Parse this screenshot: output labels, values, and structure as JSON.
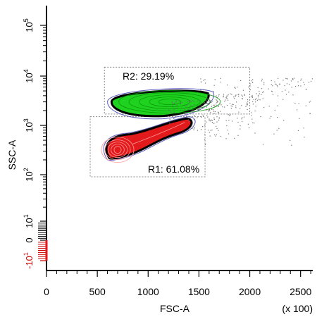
{
  "chart_data": {
    "type": "scatter",
    "subtype": "flow-cytometry contour density plot",
    "xlabel": "FSC-A",
    "ylabel": "SSC-A",
    "x_multiplier_label": "(x 100)",
    "x_ticks": [
      "0",
      "500",
      "1000",
      "1500",
      "2000",
      "2500"
    ],
    "x_tick_values": [
      0,
      500,
      1000,
      1500,
      2000,
      2500
    ],
    "xlim": [
      0,
      2620
    ],
    "y_scale": "biexponential",
    "y_ticks": [
      {
        "label": "-10",
        "exp": "1",
        "value": -10,
        "color": "#cc0000"
      },
      {
        "label": "0",
        "exp": "",
        "value": 0,
        "color": "#000000"
      },
      {
        "label": "10",
        "exp": "1",
        "value": 10,
        "color": "#000000"
      },
      {
        "label": "10",
        "exp": "2",
        "value": 100,
        "color": "#000000"
      },
      {
        "label": "10",
        "exp": "3",
        "value": 1000,
        "color": "#000000"
      },
      {
        "label": "10",
        "exp": "4",
        "value": 10000,
        "color": "#000000"
      },
      {
        "label": "10",
        "exp": "5",
        "value": 100000,
        "color": "#000000"
      }
    ],
    "gates": [
      {
        "name": "R1",
        "percent": "61.08%",
        "label": "R1: 61.08%",
        "x_range": [
          430,
          1560
        ],
        "y_range": [
          90,
          1500
        ],
        "color": "#e31a1c"
      },
      {
        "name": "R2",
        "percent": "29.19%",
        "label": "R2: 29.19%",
        "x_range": [
          570,
          2000
        ],
        "y_range": [
          1700,
          15000
        ],
        "color": "#1fd21f"
      }
    ],
    "populations": [
      {
        "gate": "R1",
        "center_x": 700,
        "center_y": 320,
        "color": "#e31a1c"
      },
      {
        "gate": "R2",
        "center_x": 1170,
        "center_y": 3000,
        "color": "#1fd21f"
      }
    ],
    "grid": false,
    "legend": "none"
  }
}
